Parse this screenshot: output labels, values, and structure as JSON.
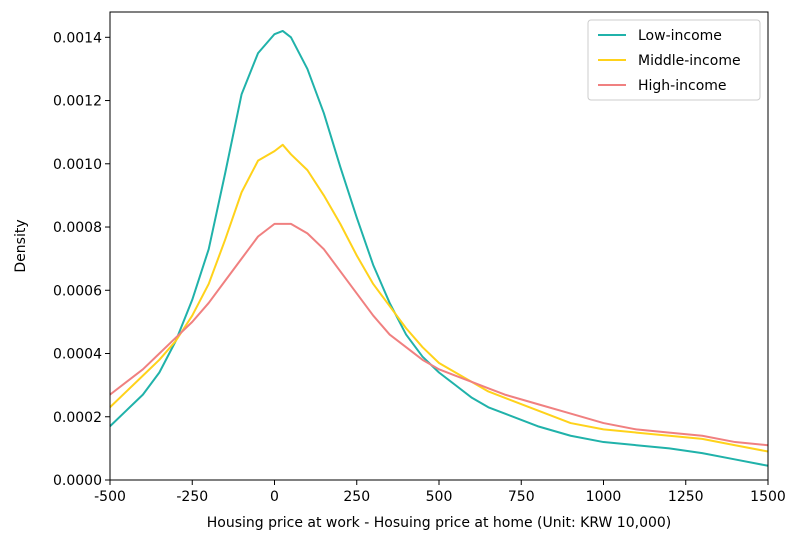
{
  "chart_data": {
    "type": "line",
    "title": "",
    "xlabel": "Housing price at work - Hosuing price at home (Unit: KRW 10,000)",
    "ylabel": "Density",
    "xlim": [
      -500,
      1500
    ],
    "ylim": [
      0,
      0.00148
    ],
    "x_ticks": [
      -500,
      -250,
      0,
      250,
      500,
      750,
      1000,
      1250,
      1500
    ],
    "x_tick_labels": [
      "-500",
      "-250",
      "0",
      "250",
      "500",
      "750",
      "1000",
      "1250",
      "1500"
    ],
    "y_ticks": [
      0,
      0.0002,
      0.0004,
      0.0006,
      0.0008,
      0.001,
      0.0012,
      0.0014
    ],
    "y_tick_labels": [
      "0.0000",
      "0.0002",
      "0.0004",
      "0.0006",
      "0.0008",
      "0.0010",
      "0.0012",
      "0.0014"
    ],
    "grid": false,
    "legend_position": "top-right",
    "series": [
      {
        "name": "Low-income",
        "color": "#20b2aa",
        "x": [
          -500,
          -450,
          -400,
          -350,
          -300,
          -250,
          -200,
          -150,
          -100,
          -50,
          0,
          25,
          50,
          100,
          150,
          200,
          250,
          300,
          350,
          400,
          450,
          500,
          550,
          600,
          650,
          700,
          800,
          900,
          1000,
          1100,
          1200,
          1300,
          1400,
          1500
        ],
        "y": [
          0.00017,
          0.00022,
          0.00027,
          0.00034,
          0.00044,
          0.00057,
          0.00073,
          0.00097,
          0.00122,
          0.00135,
          0.00141,
          0.00142,
          0.0014,
          0.0013,
          0.00116,
          0.00099,
          0.00083,
          0.00068,
          0.00056,
          0.00046,
          0.00039,
          0.00034,
          0.0003,
          0.00026,
          0.00023,
          0.00021,
          0.00017,
          0.00014,
          0.00012,
          0.00011,
          0.0001,
          8.5e-05,
          6.5e-05,
          4.5e-05
        ]
      },
      {
        "name": "Middle-income",
        "color": "#ffd21a",
        "x": [
          -500,
          -450,
          -400,
          -350,
          -300,
          -250,
          -200,
          -150,
          -100,
          -50,
          0,
          25,
          50,
          100,
          150,
          200,
          250,
          300,
          350,
          400,
          450,
          500,
          550,
          600,
          650,
          700,
          800,
          900,
          1000,
          1100,
          1200,
          1300,
          1400,
          1500
        ],
        "y": [
          0.00023,
          0.00028,
          0.00033,
          0.00038,
          0.00044,
          0.00052,
          0.00062,
          0.00076,
          0.00091,
          0.00101,
          0.00104,
          0.00106,
          0.00103,
          0.00098,
          0.0009,
          0.00081,
          0.00071,
          0.00062,
          0.00055,
          0.00048,
          0.00042,
          0.00037,
          0.00034,
          0.00031,
          0.00028,
          0.00026,
          0.00022,
          0.00018,
          0.00016,
          0.00015,
          0.00014,
          0.00013,
          0.00011,
          9e-05
        ]
      },
      {
        "name": "High-income",
        "color": "#f08080",
        "x": [
          -500,
          -450,
          -400,
          -350,
          -300,
          -250,
          -200,
          -150,
          -100,
          -50,
          0,
          25,
          50,
          100,
          150,
          200,
          250,
          300,
          350,
          400,
          450,
          500,
          550,
          600,
          650,
          700,
          800,
          900,
          1000,
          1100,
          1200,
          1300,
          1400,
          1500
        ],
        "y": [
          0.00027,
          0.00031,
          0.00035,
          0.0004,
          0.00045,
          0.0005,
          0.00056,
          0.00063,
          0.0007,
          0.00077,
          0.00081,
          0.00081,
          0.00081,
          0.00078,
          0.00073,
          0.00066,
          0.00059,
          0.00052,
          0.00046,
          0.00042,
          0.00038,
          0.00035,
          0.00033,
          0.00031,
          0.00029,
          0.00027,
          0.00024,
          0.00021,
          0.00018,
          0.00016,
          0.00015,
          0.00014,
          0.00012,
          0.00011
        ]
      }
    ]
  }
}
